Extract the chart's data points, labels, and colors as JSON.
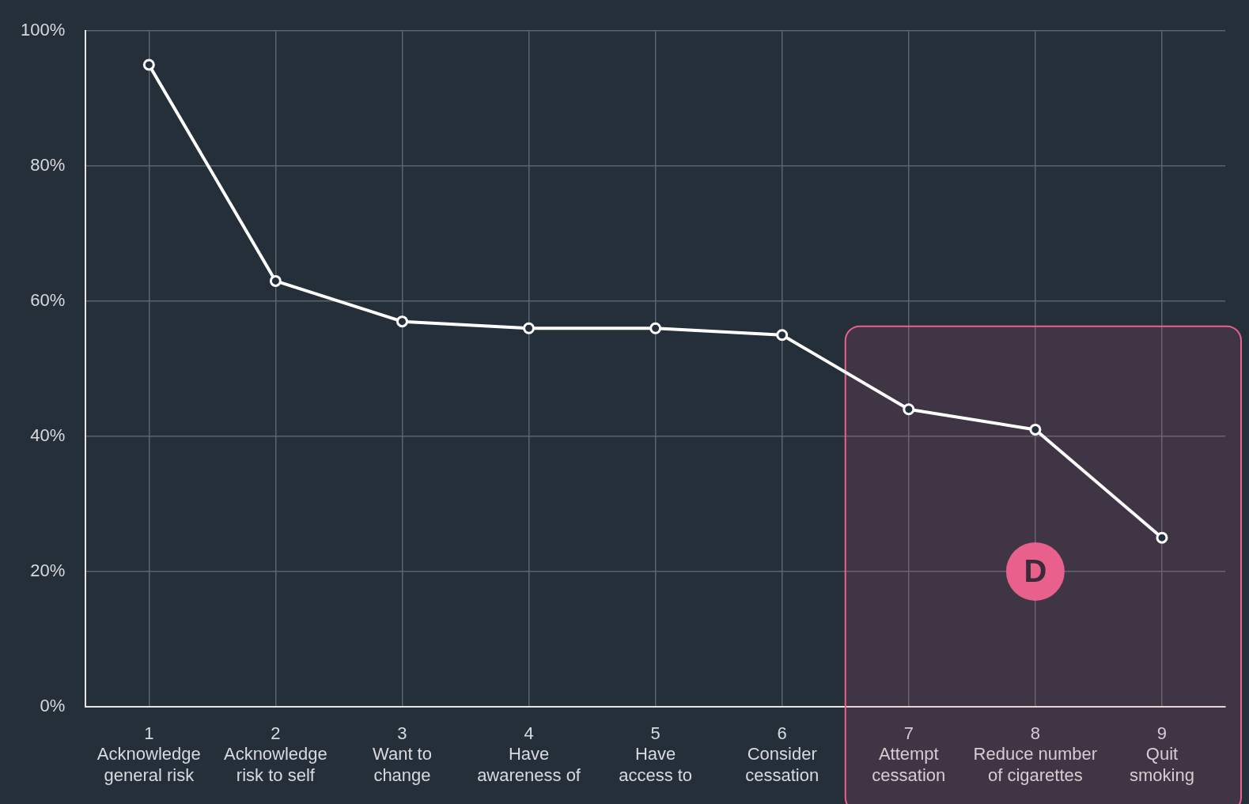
{
  "chart_data": {
    "type": "line",
    "categories": [
      "1\nAcknowledge\ngeneral risk",
      "2\nAcknowledge\nrisk to self",
      "3\nWant to\nchange",
      "4\nHave\nawareness of",
      "5\nHave\naccess to",
      "6\nConsider\ncessation",
      "7\nAttempt\ncessation",
      "8\nReduce number\nof cigarettes",
      "9\nQuit\nsmoking"
    ],
    "series": [
      {
        "color": "#ffffff",
        "values": [
          95,
          63,
          57,
          56,
          56,
          55,
          44,
          41,
          25
        ]
      }
    ],
    "ylim": [
      0,
      100
    ],
    "yticks": [
      {
        "value": 0,
        "label": "0%"
      },
      {
        "value": 20,
        "label": "20%"
      },
      {
        "value": 40,
        "label": "40%"
      },
      {
        "value": 60,
        "label": "60%"
      },
      {
        "value": 80,
        "label": "80%"
      },
      {
        "value": 100,
        "label": "100%"
      }
    ],
    "grid": true,
    "legend": false,
    "marker": "circle",
    "line_style": "solid",
    "bands": [
      {
        "axis": "x",
        "from": "7\nAttempt\ncessation",
        "to": "9\nQuit\nsmoking",
        "label": "D",
        "color": "#e8618c"
      }
    ]
  }
}
